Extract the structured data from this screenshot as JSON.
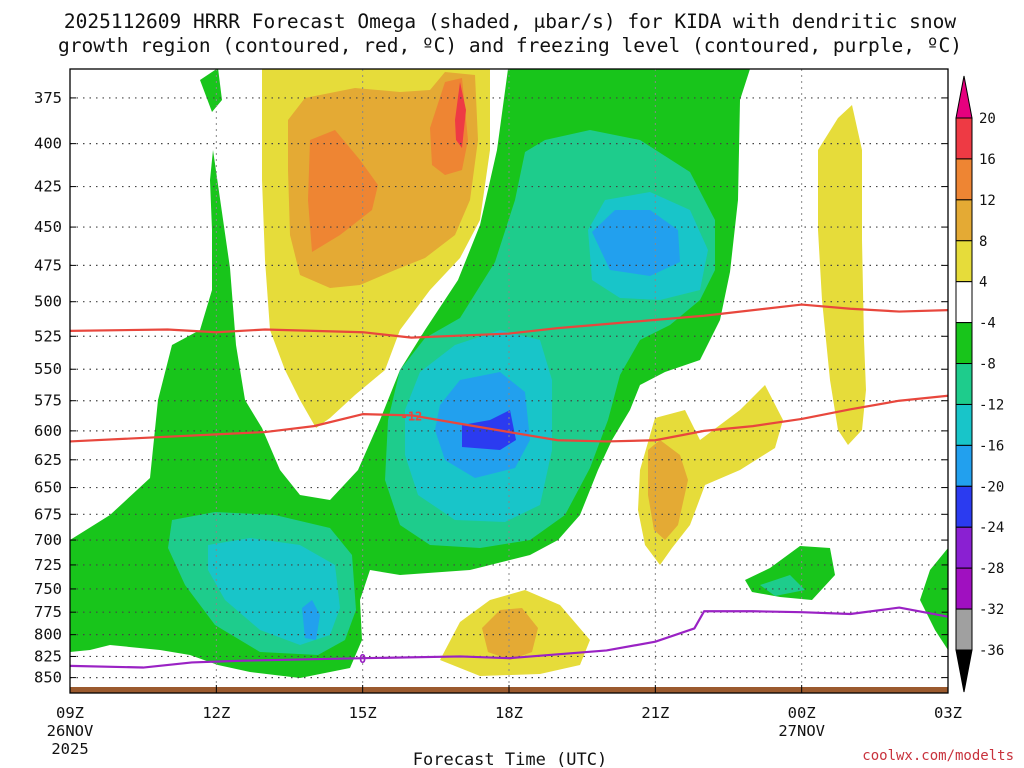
{
  "chart_data": {
    "type": "time-height contour",
    "title_line1": "2025112609 HRRR Forecast Omega (shaded, μbar/s) for KIDA with dendritic snow",
    "title_line2": "growth region (contoured, red, ºC) and freezing level (contoured, purple, ºC)",
    "xlabel": "Forecast Time (UTC)",
    "credit": "coolwx.com/modelts",
    "x_ticks": [
      {
        "hours": 0,
        "label": "09Z",
        "sub1": "26NOV",
        "sub2": "2025"
      },
      {
        "hours": 3,
        "label": "12Z",
        "sub1": "",
        "sub2": ""
      },
      {
        "hours": 6,
        "label": "15Z",
        "sub1": "",
        "sub2": ""
      },
      {
        "hours": 9,
        "label": "18Z",
        "sub1": "",
        "sub2": ""
      },
      {
        "hours": 12,
        "label": "21Z",
        "sub1": "",
        "sub2": ""
      },
      {
        "hours": 15,
        "label": "00Z",
        "sub1": "27NOV",
        "sub2": ""
      },
      {
        "hours": 18,
        "label": "03Z",
        "sub1": "",
        "sub2": ""
      }
    ],
    "xlim_hours": [
      0,
      18
    ],
    "y_levels_mb": [
      "375",
      "400",
      "425",
      "450",
      "475",
      "500",
      "525",
      "550",
      "575",
      "600",
      "625",
      "650",
      "675",
      "700",
      "725",
      "750",
      "775",
      "800",
      "825",
      "850"
    ],
    "ylim_mb": [
      360,
      865
    ],
    "colorbar": {
      "labels": [
        "20",
        "16",
        "12",
        "8",
        "4",
        "-4",
        "-8",
        "-12",
        "-16",
        "-20",
        "-24",
        "-28",
        "-32",
        "-36"
      ],
      "bands": [
        {
          "from": 16,
          "to": 20,
          "color": "#ee3a44"
        },
        {
          "from": 12,
          "to": 16,
          "color": "#ee8533"
        },
        {
          "from": 8,
          "to": 12,
          "color": "#e4aa34"
        },
        {
          "from": 4,
          "to": 8,
          "color": "#e6dc3a"
        },
        {
          "from": -4,
          "to": 4,
          "color": "#ffffff"
        },
        {
          "from": -8,
          "to": -4,
          "color": "#18c51b"
        },
        {
          "from": -12,
          "to": -8,
          "color": "#1ecc8c"
        },
        {
          "from": -16,
          "to": -12,
          "color": "#18c5c9"
        },
        {
          "from": -20,
          "to": -16,
          "color": "#22a0ee"
        },
        {
          "from": -24,
          "to": -20,
          "color": "#2b3bf0"
        },
        {
          "from": -28,
          "to": -24,
          "color": "#8a20d2"
        },
        {
          "from": -32,
          "to": -28,
          "color": "#a010c0"
        },
        {
          "from": -36,
          "to": -32,
          "color": "#a0a0a0"
        }
      ],
      "top_arrow_color": "#e6007e",
      "bottom_arrow_color": "#000000"
    },
    "contours": [
      {
        "name": "dendritic-upper",
        "temp_c": -18,
        "label": "",
        "color": "#e8473d",
        "points": [
          [
            0,
            521
          ],
          [
            2,
            520
          ],
          [
            3,
            522
          ],
          [
            4,
            520
          ],
          [
            6,
            522
          ],
          [
            7,
            526
          ],
          [
            9,
            523
          ],
          [
            10,
            519
          ],
          [
            12,
            513
          ],
          [
            13,
            510
          ],
          [
            15,
            502
          ],
          [
            16,
            505
          ],
          [
            17,
            507
          ],
          [
            18,
            506
          ]
        ]
      },
      {
        "name": "dendritic-lower",
        "temp_c": -12,
        "label": "-12",
        "color": "#e8473d",
        "points": [
          [
            0,
            609
          ],
          [
            3,
            603
          ],
          [
            4,
            601
          ],
          [
            5,
            596
          ],
          [
            6,
            586
          ],
          [
            7,
            587
          ],
          [
            8,
            594
          ],
          [
            9,
            601
          ],
          [
            10,
            608
          ],
          [
            11,
            609
          ],
          [
            12,
            608
          ],
          [
            13,
            600
          ],
          [
            14,
            596
          ],
          [
            15,
            590
          ],
          [
            16,
            582
          ],
          [
            17,
            575
          ],
          [
            18,
            571
          ]
        ]
      },
      {
        "name": "freezing-level",
        "temp_c": 0,
        "label": "0",
        "color": "#9a22c4",
        "points": [
          [
            0,
            836
          ],
          [
            1.5,
            838
          ],
          [
            2.5,
            832
          ],
          [
            3.5,
            830
          ],
          [
            6,
            827
          ],
          [
            8,
            825
          ],
          [
            9,
            827
          ],
          [
            11,
            818
          ],
          [
            12,
            808
          ],
          [
            12.8,
            793
          ],
          [
            13,
            774
          ],
          [
            14,
            774
          ],
          [
            15,
            775
          ],
          [
            16,
            777
          ],
          [
            17,
            770
          ],
          [
            18,
            780
          ]
        ]
      }
    ],
    "omega_regions": [
      {
        "value_range": [
          -8,
          -4
        ],
        "label": "large ascent area"
      },
      {
        "value_range": [
          4,
          8
        ],
        "label": "subsidence upper left"
      },
      {
        "value_range": [
          -24,
          -20
        ],
        "label": "max ascent near 18Z 600mb"
      }
    ]
  }
}
